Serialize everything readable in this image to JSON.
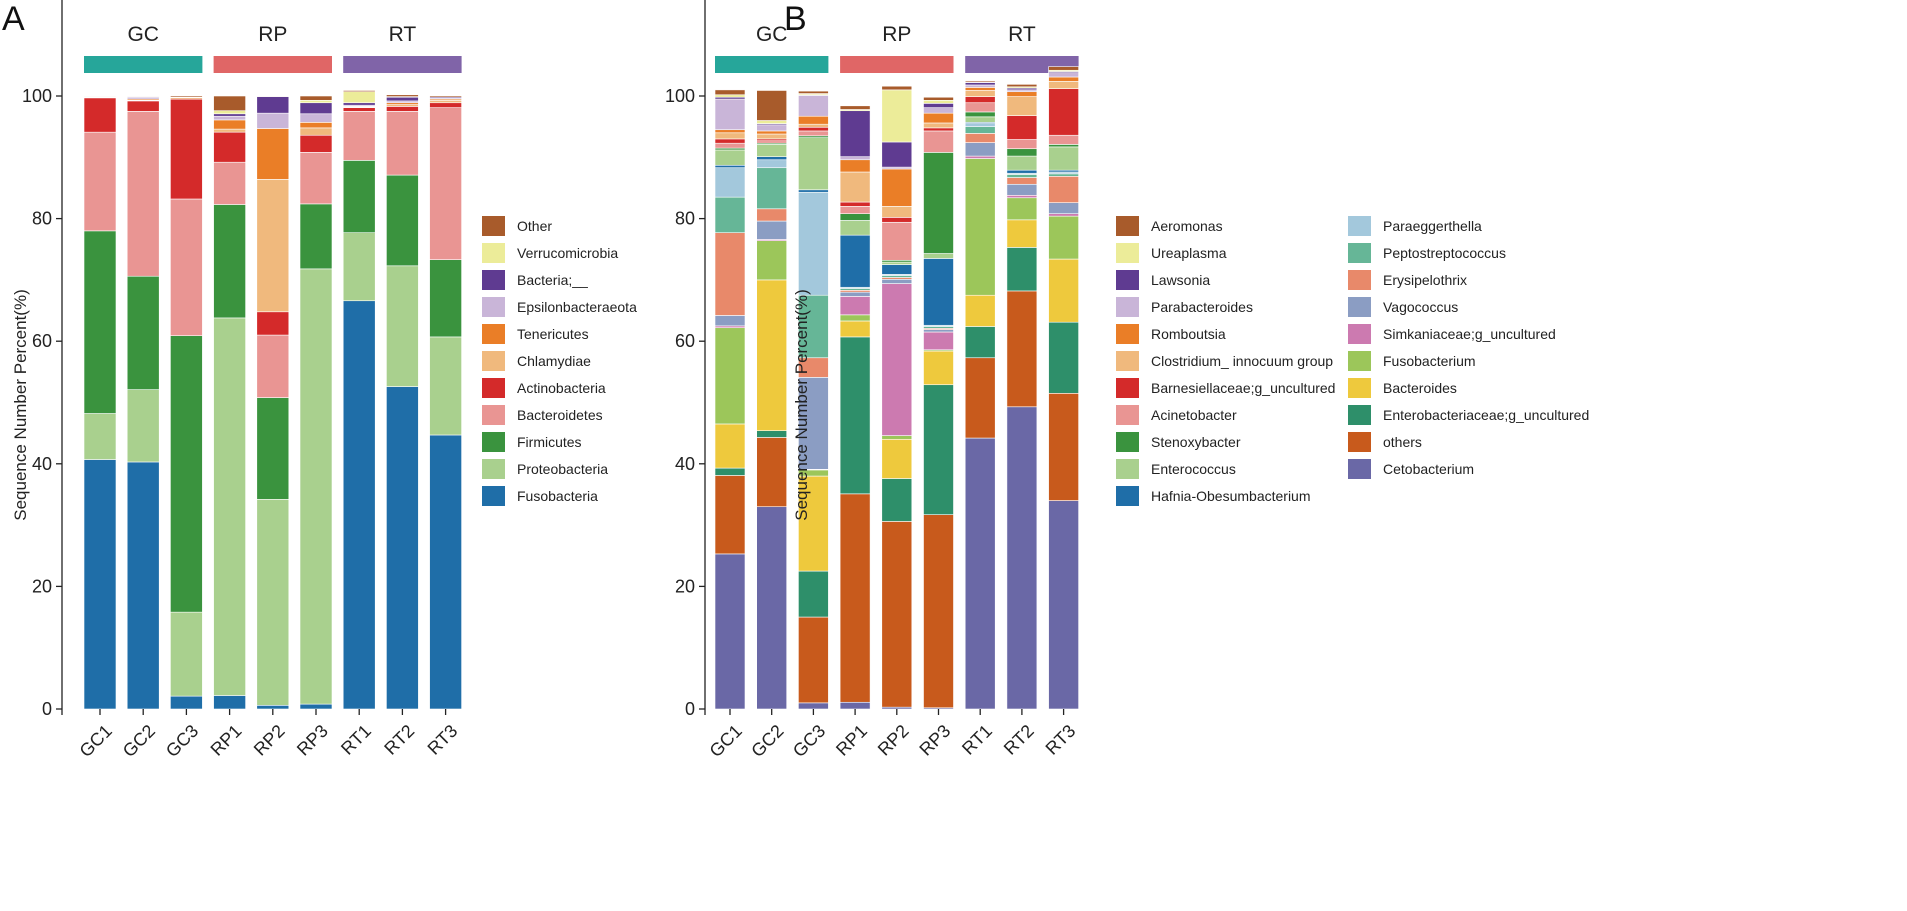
{
  "chart_data": [
    {
      "panel": "A",
      "type": "bar",
      "stacked": true,
      "ylabel": "Sequence Number Percent(%)",
      "xlabel": "",
      "ylim": [
        0,
        100
      ],
      "yticks": [
        0,
        20,
        40,
        60,
        80,
        100
      ],
      "categories": [
        "GC1",
        "GC2",
        "GC3",
        "RP1",
        "RP2",
        "RP3",
        "RT1",
        "RT2",
        "RT3"
      ],
      "groups": [
        {
          "label": "GC",
          "color": "#26a69a",
          "members": [
            "GC1",
            "GC2",
            "GC3"
          ]
        },
        {
          "label": "RP",
          "color": "#e06666",
          "members": [
            "RP1",
            "RP2",
            "RP3"
          ]
        },
        {
          "label": "RT",
          "color": "#8064a8",
          "members": [
            "RT1",
            "RT2",
            "RT3"
          ]
        }
      ],
      "legend_position": "right",
      "series": [
        {
          "name": "Fusobacteria",
          "color": "#1f6ea8",
          "values": [
            40.7,
            40.3,
            2.1,
            2.2,
            0.6,
            0.8,
            66.6,
            52.6,
            44.7
          ]
        },
        {
          "name": "Proteobacteria",
          "color": "#a9d08e",
          "values": [
            7.5,
            11.8,
            13.7,
            61.6,
            33.6,
            71.0,
            11.1,
            19.7,
            16.0
          ]
        },
        {
          "name": "Firmicutes",
          "color": "#3a933e",
          "values": [
            29.8,
            18.5,
            45.1,
            18.5,
            16.6,
            10.6,
            11.8,
            14.8,
            12.6
          ]
        },
        {
          "name": "Bacteroidetes",
          "color": "#e99593",
          "values": [
            16.1,
            26.9,
            22.3,
            6.9,
            10.2,
            8.4,
            8.0,
            10.4,
            24.8
          ]
        },
        {
          "name": "Actinobacteria",
          "color": "#d42a2a",
          "values": [
            5.6,
            1.7,
            16.3,
            4.9,
            3.8,
            2.8,
            0.6,
            0.8,
            0.8
          ]
        },
        {
          "name": "Chlamydiae",
          "color": "#f0b97d",
          "values": [
            0.1,
            0.1,
            0.0,
            0.5,
            21.6,
            1.2,
            0.1,
            0.3,
            0.4
          ]
        },
        {
          "name": "Tenericutes",
          "color": "#ea7e27",
          "values": [
            0.1,
            0.2,
            0.2,
            1.5,
            8.3,
            0.9,
            0.1,
            0.3,
            0.2
          ]
        },
        {
          "name": "Epsilonbacteraeota",
          "color": "#c9b5d8",
          "values": [
            0.0,
            0.3,
            0.0,
            0.6,
            2.5,
            1.4,
            0.2,
            0.3,
            0.1
          ]
        },
        {
          "name": "Bacteria;__",
          "color": "#5f3b91",
          "values": [
            0.0,
            0.1,
            0.0,
            0.4,
            2.7,
            1.8,
            0.4,
            0.6,
            0.2
          ]
        },
        {
          "name": "Verrucomicrobia",
          "color": "#ecec99",
          "values": [
            0.0,
            0.0,
            0.1,
            0.5,
            0.0,
            0.4,
            1.8,
            0.1,
            0.0
          ]
        },
        {
          "name": "Other",
          "color": "#a85b2b",
          "values": [
            0.1,
            0.1,
            0.2,
            2.4,
            0.1,
            0.7,
            0.2,
            0.3,
            0.2
          ]
        }
      ]
    },
    {
      "panel": "B",
      "type": "bar",
      "stacked": true,
      "ylabel": "Sequence Number Percent(%)",
      "xlabel": "",
      "ylim": [
        0,
        100
      ],
      "yticks": [
        0,
        20,
        40,
        60,
        80,
        100
      ],
      "categories": [
        "GC1",
        "GC2",
        "GC3",
        "RP1",
        "RP2",
        "RP3",
        "RT1",
        "RT2",
        "RT3"
      ],
      "groups": [
        {
          "label": "GC",
          "color": "#26a69a",
          "members": [
            "GC1",
            "GC2",
            "GC3"
          ]
        },
        {
          "label": "RP",
          "color": "#e06666",
          "members": [
            "RP1",
            "RP2",
            "RP3"
          ]
        },
        {
          "label": "RT",
          "color": "#8064a8",
          "members": [
            "RT1",
            "RT2",
            "RT3"
          ]
        }
      ],
      "legend_position": "right",
      "series": [
        {
          "name": "Cetobacterium",
          "color": "#6a68a6",
          "values": [
            25.3,
            33.0,
            1.0,
            1.1,
            0.3,
            0.2,
            44.2,
            49.3,
            34.0
          ]
        },
        {
          "name": "others",
          "color": "#c85a1c",
          "values": [
            12.8,
            11.3,
            14.0,
            34.0,
            30.3,
            31.5,
            13.1,
            18.9,
            17.5
          ]
        },
        {
          "name": "Enterobacteriaceae;g_uncultured",
          "color": "#2e8f6a",
          "values": [
            1.2,
            1.1,
            7.5,
            25.6,
            7.0,
            21.2,
            5.1,
            7.1,
            11.6
          ]
        },
        {
          "name": "Bacteroides",
          "color": "#eec93d",
          "values": [
            7.2,
            24.6,
            15.5,
            2.6,
            6.4,
            5.5,
            5.1,
            4.5,
            10.3
          ]
        },
        {
          "name": "Fusobacterium",
          "color": "#9cc65a",
          "values": [
            15.7,
            6.4,
            1.0,
            1.0,
            0.6,
            0.2,
            22.3,
            3.6,
            7.0
          ]
        },
        {
          "name": "Simkaniaceae;g_uncultured",
          "color": "#cc7ab0",
          "values": [
            0.3,
            0.2,
            0.1,
            3.0,
            24.8,
            2.9,
            0.4,
            0.4,
            0.4
          ]
        },
        {
          "name": "Vagococcus",
          "color": "#8b9dc3",
          "values": [
            1.7,
            3.0,
            15.0,
            0.7,
            0.7,
            0.4,
            2.2,
            1.8,
            1.8
          ]
        },
        {
          "name": "Erysipelothrix",
          "color": "#e8896a",
          "values": [
            13.5,
            2.0,
            3.2,
            0.3,
            0.3,
            0.2,
            1.5,
            1.1,
            4.3
          ]
        },
        {
          "name": "Peptostreptococcus",
          "color": "#66b697",
          "values": [
            5.8,
            6.7,
            10.2,
            0.3,
            0.3,
            0.3,
            1.1,
            0.5,
            0.4
          ]
        },
        {
          "name": "Paraeggerthella",
          "color": "#a3c8dc",
          "values": [
            4.8,
            1.3,
            16.8,
            0.2,
            0.2,
            0.2,
            0.5,
            0.2,
            0.3
          ]
        },
        {
          "name": "Hafnia-Obesumbacterium",
          "color": "#1f6ea8",
          "values": [
            0.4,
            0.5,
            0.4,
            8.5,
            1.6,
            10.9,
            0.2,
            0.5,
            0.3
          ]
        },
        {
          "name": "Enterococcus",
          "color": "#a9d08e",
          "values": [
            2.5,
            2.0,
            8.5,
            2.4,
            0.4,
            0.8,
            0.9,
            2.3,
            3.8
          ]
        },
        {
          "name": "Stenoxybacter",
          "color": "#3a933e",
          "values": [
            0.3,
            0.2,
            0.3,
            1.1,
            0.3,
            16.5,
            0.8,
            1.2,
            0.4
          ]
        },
        {
          "name": "Acinetobacter",
          "color": "#e99593",
          "values": [
            0.8,
            0.4,
            0.8,
            1.2,
            6.2,
            3.5,
            1.5,
            1.5,
            1.5
          ]
        },
        {
          "name": "Barnesiellaceae;g_uncultured",
          "color": "#d42a2a",
          "values": [
            0.7,
            0.3,
            0.6,
            0.7,
            0.8,
            0.5,
            1.0,
            3.9,
            7.6
          ]
        },
        {
          "name": "Clostridium_ innocuum group",
          "color": "#f0b97d",
          "values": [
            1.0,
            0.8,
            0.5,
            4.9,
            1.8,
            0.8,
            1.0,
            3.1,
            1.2
          ]
        },
        {
          "name": "Romboutsia",
          "color": "#ea7e27",
          "values": [
            0.5,
            0.5,
            1.3,
            2.0,
            6.1,
            1.6,
            0.5,
            0.8,
            0.7
          ]
        },
        {
          "name": "Parabacteroides",
          "color": "#c9b5d8",
          "values": [
            5.0,
            1.0,
            3.4,
            0.5,
            0.3,
            0.9,
            0.4,
            0.3,
            0.7
          ]
        },
        {
          "name": "Lawsonia",
          "color": "#5f3b91",
          "values": [
            0.3,
            0.2,
            0.1,
            7.5,
            4.1,
            0.7,
            0.4,
            0.3,
            0.2
          ]
        },
        {
          "name": "Ureaplasma",
          "color": "#ecec99",
          "values": [
            0.4,
            0.5,
            0.2,
            0.2,
            8.5,
            0.5,
            0.1,
            0.2,
            0.2
          ]
        },
        {
          "name": "Aeromonas",
          "color": "#a85b2b",
          "values": [
            0.8,
            4.9,
            0.4,
            0.6,
            0.6,
            0.5,
            0.2,
            0.4,
            0.6
          ]
        }
      ]
    }
  ]
}
